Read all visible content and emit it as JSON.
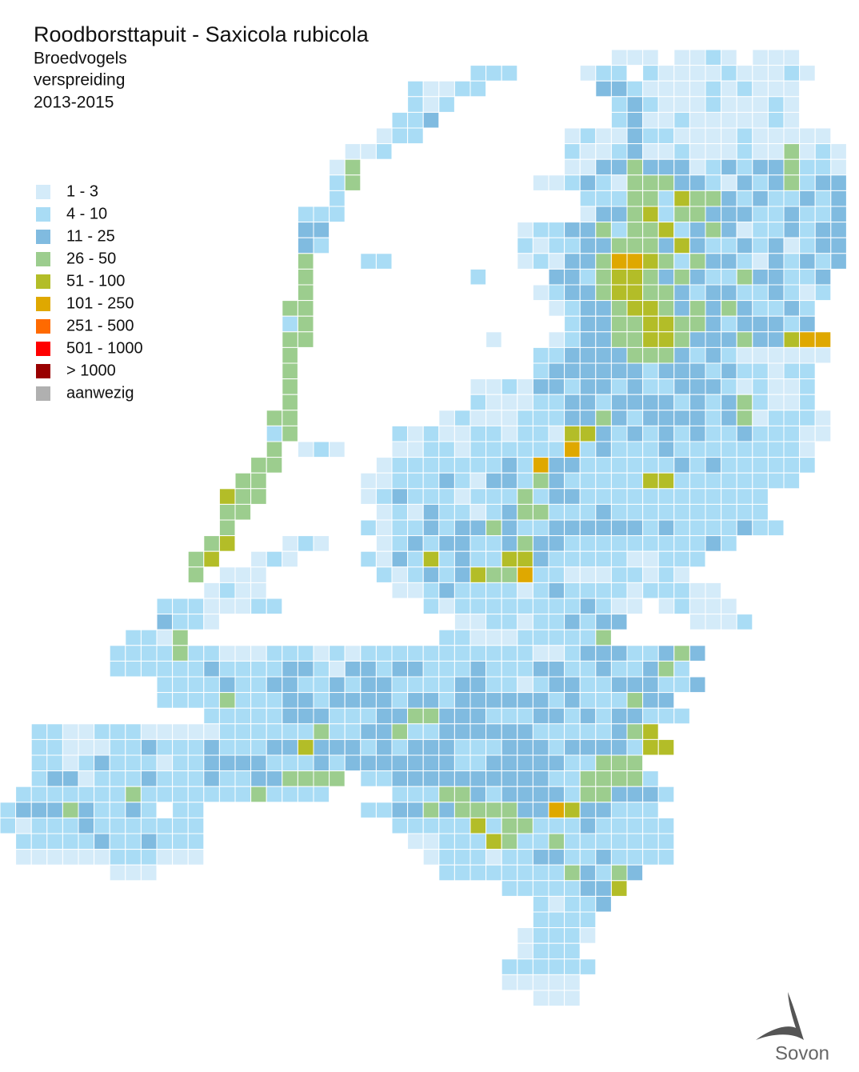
{
  "header": {
    "title": "Roodborsttapuit - Saxicola rubicola",
    "subtitle": [
      "Broedvogels",
      "verspreiding",
      "2013-2015"
    ]
  },
  "legend": [
    {
      "label": "1 - 3",
      "color": "#d4ebf9"
    },
    {
      "label": "4 - 10",
      "color": "#a9dcf5"
    },
    {
      "label": "11 - 25",
      "color": "#80bbe0"
    },
    {
      "label": "26 - 50",
      "color": "#9ccd8e"
    },
    {
      "label": "51 - 100",
      "color": "#b3bd28"
    },
    {
      "label": "101 - 250",
      "color": "#dfa800"
    },
    {
      "label": "251 - 500",
      "color": "#ff6a00"
    },
    {
      "label": "501 - 1000",
      "color": "#ff0000"
    },
    {
      "label": "> 1000",
      "color": "#990000"
    },
    {
      "label": "aanwezig",
      "color": "#b0b0b0"
    }
  ],
  "grid": {
    "rows": [
      ".......................................111.1121.111",
      "..............................222....122.21111211121",
      "..........................21122.......3321111212111",
      "..........................212..........232111211121",
      ".........................223...........231121111121",
      "........................122.........12113221111211111",
      "......................112...........211231121112114121",
      ".....................14.............113343331232334221",
      ".....................24...........11232144433213234233",
      ".....................2...............22244254432322323",
      "...................222...............13345244333223223",
      "...................33............122334244523431223233",
      "...................32............212233444353223231233",
      "...................4...22........121334665424332132323",
      "...................4..........2....332455434322433223",
      "...................4..............1233455443233223212",
      "..................44...............12334554343432232",
      "..................24................2334455443233323",
      "..................44...........1...123344554333433566",
      "..................4...............2233334443232111111",
      "..................4...............233333323332322122",
      "..................4...........1121332332322333212112",
      "..................4...........2111223323333232342112",
      ".................44.........1211122233432333323412221",
      ".................24......2121122122155323232322322211",
      ".................4.121...112212222226232223222222221",
      "................44......1222222232633222222323222222",
      "...............44......1122232133243222225522222222",
      "..............544......12322212224233222222222222",
      "..............44........1213221234422232222222222",
      "..............4........212232334322333333232222322",
      ".............45...121...12323322343322222222232",
      "............45..121....2132523225532222211222",
      "............4.111.......21232354462211122121",
      ".............1211........112322221232222122211",
      "..........22211122.........21222222223211.12111",
      "..........3221...............11221223233....1112",
      "........2214................22111222224",
      ".......22224221112221212222222222211233322343",
      ".......2222223222233213323322232223322322342",
      "..........22223223322323322223322123322333223",
      "..........222242223323333233233333323222433",
      ".............2222233322233443332223323233222",
      "..2211222111112222224223342233333322222345",
      "..22111223222322233533323233322233323333255",
      "..221232221223333222323333333223333322444",
      "..23312223222322334444.2233333333332244442",
      ".22222224222222242222....222443233332443332",
      "2333432232.22..........2233434444336533222",
      "2122232222222............222225244222322222",
      ".222223223222.............11222542242222222",
      ".111111222111..............1222122332232222",
      ".......111..................2222222243243",
      "................................22222335",
      "..................................21223",
      "..................................2222",
      ".................................12221",
      ".................................1222",
      "................................222222",
      "................................11111",
      "..................................111"
    ]
  },
  "logo": "Sovon"
}
